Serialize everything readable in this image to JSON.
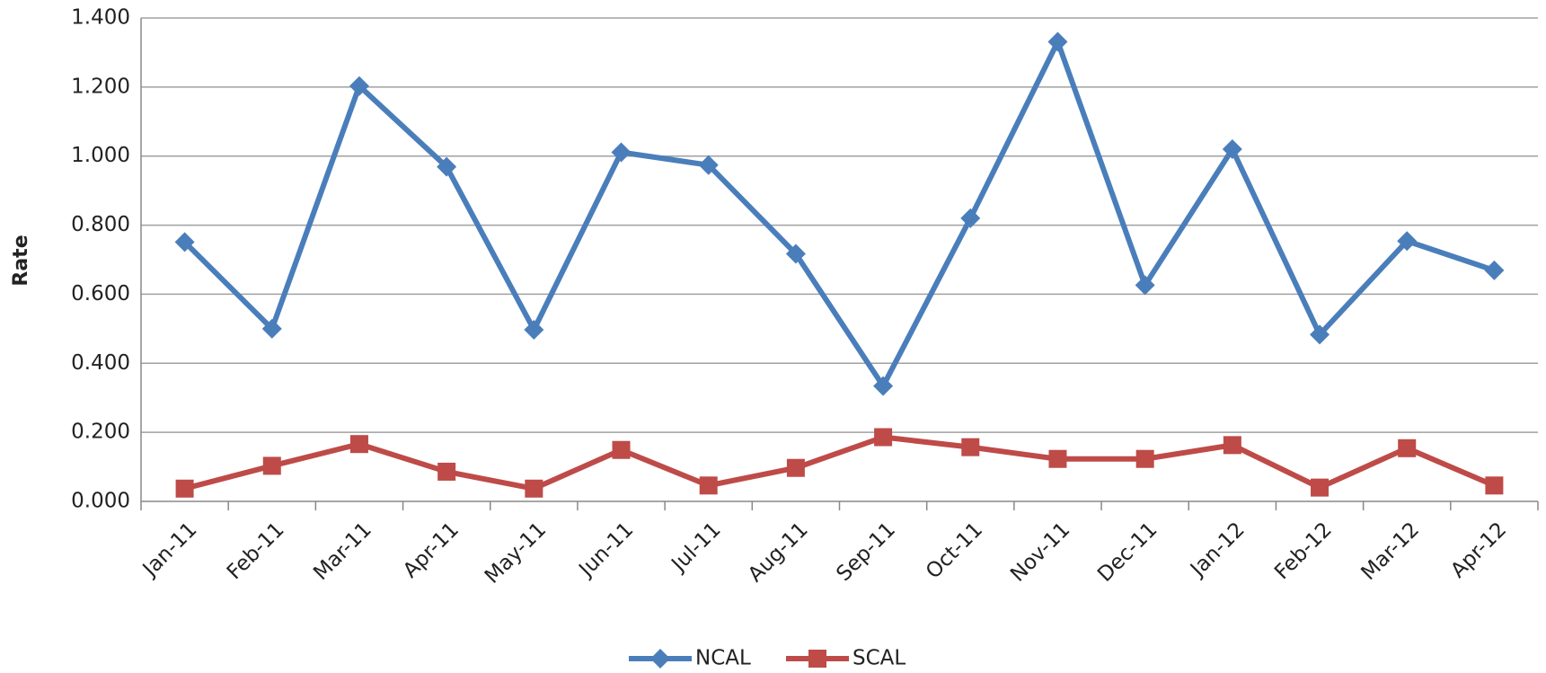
{
  "chart_data": {
    "type": "line",
    "y_label": "Rate",
    "categories": [
      "Jan-11",
      "Feb-11",
      "Mar-11",
      "Apr-11",
      "May-11",
      "Jun-11",
      "Jul-11",
      "Aug-11",
      "Sep-11",
      "Oct-11",
      "Nov-11",
      "Dec-11",
      "Jan-12",
      "Feb-12",
      "Mar-12",
      "Apr-12"
    ],
    "series": [
      {
        "name": "NCAL",
        "color": "#4a7ebb",
        "marker": "diamond",
        "values": [
          0.751,
          0.5,
          1.203,
          0.969,
          0.497,
          1.011,
          0.974,
          0.717,
          0.334,
          0.82,
          1.331,
          0.626,
          1.02,
          0.483,
          0.754,
          0.669
        ]
      },
      {
        "name": "SCAL",
        "color": "#be4b48",
        "marker": "square",
        "values": [
          0.037,
          0.103,
          0.166,
          0.086,
          0.037,
          0.149,
          0.046,
          0.097,
          0.186,
          0.157,
          0.123,
          0.123,
          0.163,
          0.04,
          0.154,
          0.046
        ]
      }
    ],
    "ylim": [
      0,
      1.4
    ],
    "yticks": [
      {
        "value": 0,
        "label": "0.000"
      },
      {
        "value": 0.2,
        "label": "0.200"
      },
      {
        "value": 0.4,
        "label": "0.400"
      },
      {
        "value": 0.6,
        "label": "0.600"
      },
      {
        "value": 0.8,
        "label": "0.800"
      },
      {
        "value": 1.0,
        "label": "1.000"
      },
      {
        "value": 1.2,
        "label": "1.200"
      },
      {
        "value": 1.4,
        "label": "1.400"
      }
    ],
    "grid": true,
    "legend": "bottom"
  }
}
